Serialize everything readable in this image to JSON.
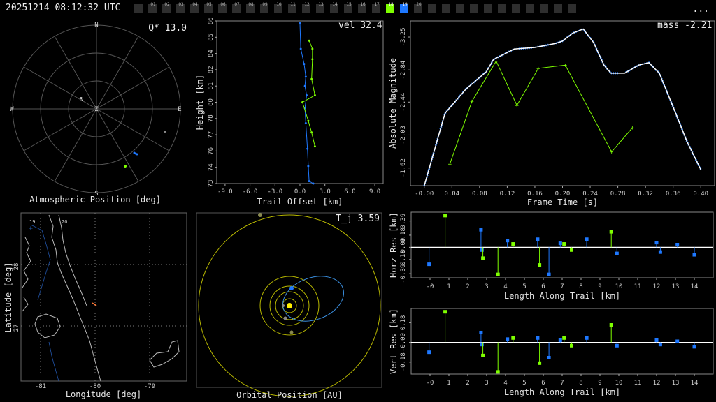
{
  "header": {
    "timestamp": "20251214 08:12:32 UTC",
    "menu_label": "...",
    "frames": [
      "",
      "01",
      "02",
      "03",
      "04",
      "05",
      "06",
      "07",
      "08",
      "09",
      "10",
      "11",
      "12",
      "13",
      "14",
      "15",
      "16",
      "17",
      "18",
      "19",
      "20",
      "",
      "",
      "",
      "",
      "",
      "",
      "",
      "",
      "",
      "",
      ""
    ],
    "active_green": "18",
    "active_blue": "19",
    "green_color": "#7fff00",
    "blue_color": "#1e78ff"
  },
  "sky": {
    "title": "Atmospheric Position [deg]",
    "q_label": "Q* 13.0",
    "north": "N",
    "south": "S",
    "east": "E",
    "west": "W",
    "zenith": "Z",
    "marker_r": "R",
    "marker_m": "M"
  },
  "trail": {
    "vel_label": "vel 32.4"
  },
  "mag": {
    "mass_label": "mass -2.21"
  },
  "map": {
    "xlabel": "Longitude [deg]",
    "ylabel": "Latitude [deg]",
    "xticks": [
      "-81",
      "-80",
      "-79"
    ],
    "yticks": [
      "28",
      "27"
    ],
    "corner_tags": [
      "19",
      "20"
    ]
  },
  "orbit": {
    "xlabel": "Orbital Position [AU]",
    "tj_label": "T_j 3.59"
  },
  "chart_data": [
    {
      "type": "line",
      "title": "",
      "xlabel": "Trail Offset [km]",
      "ylabel": "Height [km]",
      "xlim": [
        -10,
        10
      ],
      "ylim": [
        73,
        87
      ],
      "xticks": [
        "-9.0",
        "-6.0",
        "-3.0",
        "0.0",
        "3.0",
        "6.0",
        "9.0"
      ],
      "yticks": [
        "73",
        "74",
        "76",
        "77",
        "78",
        "80",
        "81",
        "82",
        "84",
        "85",
        "86"
      ],
      "series": [
        {
          "color": "#1e78ff",
          "x": [
            0.0,
            0.1,
            0.5,
            0.7,
            0.6,
            0.8,
            0.6,
            0.7,
            0.9,
            1.0,
            1.1,
            1.6
          ],
          "y": [
            86.8,
            84.6,
            83.3,
            82.2,
            81.4,
            80.6,
            79.5,
            78.2,
            76.0,
            74.5,
            73.2,
            73.0
          ]
        },
        {
          "color": "#7fff00",
          "x": [
            1.1,
            1.5,
            1.5,
            1.4,
            1.8,
            0.3,
            1.0,
            1.4,
            1.8
          ],
          "y": [
            85.3,
            84.6,
            83.7,
            82.0,
            80.6,
            80.0,
            78.4,
            77.4,
            76.2
          ]
        }
      ]
    },
    {
      "type": "line",
      "title": "",
      "xlabel": "Frame Time [s]",
      "ylabel": "Absolute Magnitude",
      "xlim": [
        -0.02,
        0.42
      ],
      "ylim": [
        -1.4,
        -3.45
      ],
      "xticks": [
        "-0.00",
        "0.04",
        "0.08",
        "0.12",
        "0.16",
        "0.20",
        "0.24",
        "0.28",
        "0.32",
        "0.36",
        "0.40"
      ],
      "yticks": [
        "-3.25",
        "-2.84",
        "-2.44",
        "-2.03",
        "-1.62"
      ],
      "series": [
        {
          "color": "#ffffff",
          "x": [
            0.0,
            0.03,
            0.06,
            0.09,
            0.1,
            0.13,
            0.16,
            0.19,
            0.2,
            0.215,
            0.23,
            0.245,
            0.26,
            0.27,
            0.29,
            0.31,
            0.325,
            0.34,
            0.36,
            0.38,
            0.4
          ],
          "y": [
            -1.4,
            -2.3,
            -2.6,
            -2.82,
            -2.97,
            -3.1,
            -3.12,
            -3.17,
            -3.2,
            -3.3,
            -3.35,
            -3.18,
            -2.9,
            -2.8,
            -2.8,
            -2.9,
            -2.93,
            -2.8,
            -2.38,
            -1.95,
            -1.6
          ]
        },
        {
          "color": "#7fff00",
          "x": [
            0.037,
            0.069,
            0.104,
            0.134,
            0.165,
            0.204,
            0.271,
            0.301
          ],
          "y": [
            -1.67,
            -2.45,
            -2.95,
            -2.4,
            -2.86,
            -2.9,
            -1.82,
            -2.12
          ]
        }
      ]
    },
    {
      "type": "scatter",
      "title": "",
      "xlabel": "Length Along Trail [km]",
      "ylabel": "Horz Res [km]",
      "xlim": [
        -1,
        15
      ],
      "ylim": [
        -0.45,
        0.52
      ],
      "xticks": [
        "-0",
        "1",
        "2",
        "3",
        "4",
        "5",
        "6",
        "7",
        "8",
        "9",
        "10",
        "11",
        "12",
        "13",
        "14"
      ],
      "yticks": [
        "0.39",
        "0.18",
        "-0.00",
        "-0.18",
        "-0.39"
      ],
      "series": [
        {
          "color": "#1e78ff",
          "x": [
            -0.05,
            2.7,
            2.75,
            4.1,
            5.7,
            6.3,
            6.9,
            8.3,
            9.9,
            12.0,
            12.2,
            13.1,
            14.0
          ],
          "y": [
            -0.25,
            0.26,
            -0.04,
            0.1,
            0.12,
            -0.4,
            0.06,
            0.12,
            -0.09,
            0.07,
            -0.07,
            0.04,
            -0.11
          ]
        },
        {
          "color": "#7fff00",
          "x": [
            0.8,
            2.8,
            3.6,
            4.4,
            5.8,
            7.1,
            7.5,
            9.6
          ],
          "y": [
            0.47,
            -0.16,
            -0.4,
            0.05,
            -0.26,
            0.05,
            -0.04,
            0.23
          ]
        }
      ]
    },
    {
      "type": "scatter",
      "title": "",
      "xlabel": "Length Along Trail [km]",
      "ylabel": "Vert Res [km]",
      "xlim": [
        -1,
        15
      ],
      "ylim": [
        -0.29,
        0.31
      ],
      "xticks": [
        "-0",
        "1",
        "2",
        "3",
        "4",
        "5",
        "6",
        "7",
        "8",
        "9",
        "10",
        "11",
        "12",
        "13",
        "14"
      ],
      "yticks": [
        "0.18",
        "-0.00",
        "-0.18"
      ],
      "series": [
        {
          "color": "#1e78ff",
          "x": [
            -0.05,
            2.7,
            2.75,
            4.1,
            5.7,
            6.3,
            6.9,
            8.3,
            9.9,
            12.0,
            12.2,
            13.1,
            14.0
          ],
          "y": [
            -0.09,
            0.09,
            -0.02,
            0.03,
            0.04,
            -0.14,
            0.02,
            0.04,
            -0.03,
            0.02,
            -0.02,
            0.01,
            -0.04
          ]
        },
        {
          "color": "#7fff00",
          "x": [
            0.8,
            2.8,
            3.6,
            4.4,
            5.8,
            7.1,
            7.5,
            9.6
          ],
          "y": [
            0.28,
            -0.12,
            -0.27,
            0.04,
            -0.19,
            0.04,
            -0.03,
            0.16
          ]
        }
      ]
    }
  ]
}
